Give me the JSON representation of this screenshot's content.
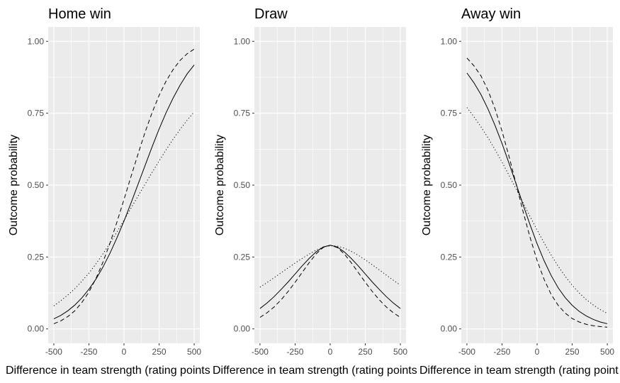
{
  "chart_data": [
    {
      "type": "line",
      "title": "Home win",
      "xlabel": "Difference in team strength (rating points)",
      "ylabel": "Outcome probability",
      "xlim": [
        -540,
        540
      ],
      "ylim": [
        -0.05,
        1.05
      ],
      "x_ticks": [
        -500,
        -250,
        0,
        250,
        500
      ],
      "x_tick_labels": [
        "-500",
        "-250",
        "0",
        "250",
        "500"
      ],
      "y_ticks": [
        0,
        0.25,
        0.5,
        0.75,
        1
      ],
      "y_tick_labels": [
        "0.00",
        "0.25",
        "0.50",
        "0.75",
        "1.00"
      ],
      "grid": true,
      "series": [
        {
          "style": "solid",
          "x": [
            -500,
            -450,
            -400,
            -350,
            -300,
            -250,
            -200,
            -150,
            -100,
            -50,
            0,
            50,
            100,
            150,
            200,
            250,
            300,
            350,
            400,
            450,
            500
          ],
          "y": [
            0.035,
            0.047,
            0.063,
            0.083,
            0.108,
            0.138,
            0.173,
            0.215,
            0.263,
            0.317,
            0.375,
            0.438,
            0.503,
            0.568,
            0.633,
            0.695,
            0.752,
            0.803,
            0.848,
            0.887,
            0.918
          ]
        },
        {
          "style": "dashed",
          "x": [
            -500,
            -450,
            -400,
            -350,
            -300,
            -250,
            -200,
            -150,
            -100,
            -50,
            0,
            50,
            100,
            150,
            200,
            250,
            300,
            350,
            400,
            450,
            500
          ],
          "y": [
            0.018,
            0.028,
            0.043,
            0.063,
            0.092,
            0.128,
            0.175,
            0.232,
            0.298,
            0.372,
            0.45,
            0.53,
            0.608,
            0.684,
            0.752,
            0.812,
            0.862,
            0.902,
            0.934,
            0.957,
            0.973
          ]
        },
        {
          "style": "dotted",
          "x": [
            -500,
            -450,
            -400,
            -350,
            -300,
            -250,
            -200,
            -150,
            -100,
            -50,
            0,
            50,
            100,
            150,
            200,
            250,
            300,
            350,
            400,
            450,
            500
          ],
          "y": [
            0.08,
            0.098,
            0.118,
            0.14,
            0.166,
            0.194,
            0.226,
            0.261,
            0.298,
            0.337,
            0.378,
            0.42,
            0.462,
            0.503,
            0.544,
            0.584,
            0.623,
            0.66,
            0.694,
            0.726,
            0.755
          ]
        }
      ]
    },
    {
      "type": "line",
      "title": "Draw",
      "xlabel": "Difference in team strength (rating points)",
      "ylabel": "Outcome probability",
      "xlim": [
        -540,
        540
      ],
      "ylim": [
        -0.05,
        1.05
      ],
      "x_ticks": [
        -500,
        -250,
        0,
        250,
        500
      ],
      "x_tick_labels": [
        "-500",
        "-250",
        "0",
        "250",
        "500"
      ],
      "y_ticks": [
        0,
        0.25,
        0.5,
        0.75,
        1
      ],
      "y_tick_labels": [
        "0.00",
        "0.25",
        "0.50",
        "0.75",
        "1.00"
      ],
      "grid": true,
      "series": [
        {
          "style": "solid",
          "x": [
            -500,
            -450,
            -400,
            -350,
            -300,
            -250,
            -200,
            -150,
            -100,
            -50,
            0,
            50,
            100,
            150,
            200,
            250,
            300,
            350,
            400,
            450,
            500
          ],
          "y": [
            0.071,
            0.09,
            0.112,
            0.137,
            0.163,
            0.191,
            0.219,
            0.245,
            0.268,
            0.285,
            0.291,
            0.285,
            0.268,
            0.245,
            0.219,
            0.191,
            0.163,
            0.137,
            0.112,
            0.09,
            0.071
          ]
        },
        {
          "style": "dashed",
          "x": [
            -500,
            -450,
            -400,
            -350,
            -300,
            -250,
            -200,
            -150,
            -100,
            -50,
            0,
            50,
            100,
            150,
            200,
            250,
            300,
            350,
            400,
            450,
            500
          ],
          "y": [
            0.04,
            0.056,
            0.076,
            0.101,
            0.13,
            0.162,
            0.196,
            0.23,
            0.261,
            0.283,
            0.291,
            0.283,
            0.261,
            0.23,
            0.196,
            0.162,
            0.13,
            0.101,
            0.076,
            0.056,
            0.04
          ]
        },
        {
          "style": "dotted",
          "x": [
            -500,
            -450,
            -400,
            -350,
            -300,
            -250,
            -200,
            -150,
            -100,
            -50,
            0,
            50,
            100,
            150,
            200,
            250,
            300,
            350,
            400,
            450,
            500
          ],
          "y": [
            0.145,
            0.161,
            0.178,
            0.195,
            0.212,
            0.229,
            0.245,
            0.26,
            0.274,
            0.284,
            0.289,
            0.288,
            0.281,
            0.27,
            0.256,
            0.24,
            0.223,
            0.205,
            0.187,
            0.169,
            0.152
          ]
        }
      ]
    },
    {
      "type": "line",
      "title": "Away win",
      "xlabel": "Difference in team strength (rating points)",
      "ylabel": "Outcome probability",
      "xlim": [
        -540,
        540
      ],
      "ylim": [
        -0.05,
        1.05
      ],
      "x_ticks": [
        -500,
        -250,
        0,
        250,
        500
      ],
      "x_tick_labels": [
        "-500",
        "-250",
        "0",
        "250",
        "500"
      ],
      "y_ticks": [
        0,
        0.25,
        0.5,
        0.75,
        1
      ],
      "y_tick_labels": [
        "0.00",
        "0.25",
        "0.50",
        "0.75",
        "1.00"
      ],
      "grid": true,
      "series": [
        {
          "style": "solid",
          "x": [
            -500,
            -450,
            -400,
            -350,
            -300,
            -250,
            -200,
            -150,
            -100,
            -50,
            0,
            50,
            100,
            150,
            200,
            250,
            300,
            350,
            400,
            450,
            500
          ],
          "y": [
            0.89,
            0.856,
            0.815,
            0.765,
            0.708,
            0.645,
            0.576,
            0.505,
            0.432,
            0.362,
            0.296,
            0.237,
            0.186,
            0.143,
            0.109,
            0.082,
            0.061,
            0.045,
            0.033,
            0.024,
            0.018
          ]
        },
        {
          "style": "dashed",
          "x": [
            -500,
            -450,
            -400,
            -350,
            -300,
            -250,
            -200,
            -150,
            -100,
            -50,
            0,
            50,
            100,
            150,
            200,
            250,
            300,
            350,
            400,
            450,
            500
          ],
          "y": [
            0.942,
            0.915,
            0.88,
            0.83,
            0.766,
            0.688,
            0.6,
            0.505,
            0.408,
            0.318,
            0.238,
            0.172,
            0.12,
            0.082,
            0.055,
            0.036,
            0.024,
            0.016,
            0.011,
            0.008,
            0.006
          ]
        },
        {
          "style": "dotted",
          "x": [
            -500,
            -450,
            -400,
            -350,
            -300,
            -250,
            -200,
            -150,
            -100,
            -50,
            0,
            50,
            100,
            150,
            200,
            250,
            300,
            350,
            400,
            450,
            500
          ],
          "y": [
            0.77,
            0.738,
            0.703,
            0.665,
            0.624,
            0.58,
            0.534,
            0.487,
            0.439,
            0.391,
            0.344,
            0.299,
            0.257,
            0.218,
            0.183,
            0.152,
            0.125,
            0.102,
            0.083,
            0.067,
            0.054
          ]
        }
      ]
    }
  ]
}
